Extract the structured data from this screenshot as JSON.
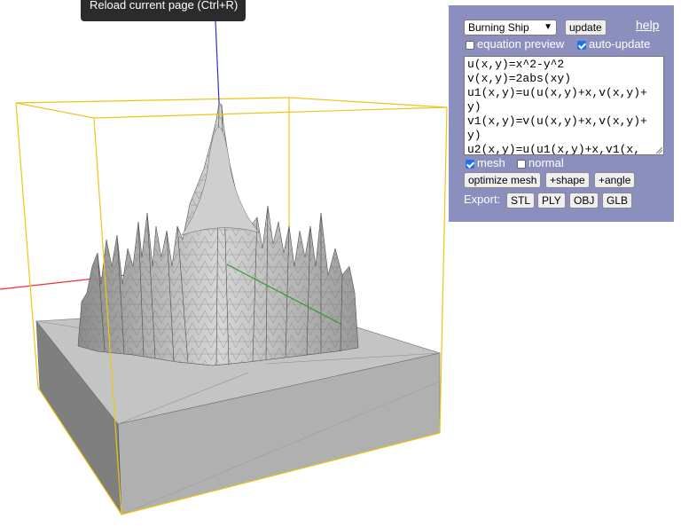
{
  "tooltip": {
    "text": "Reload current page (Ctrl+R)"
  },
  "panel": {
    "fractal_select": {
      "value": "Burning Ship"
    },
    "update_label": "update",
    "help_label": "help",
    "equation_preview": {
      "label": "equation preview",
      "checked": false
    },
    "auto_update": {
      "label": "auto-update",
      "checked": true
    },
    "equation_text": "u(x,y)=x^2-y^2\nv(x,y)=2abs(xy)\nu1(x,y)=u(u(x,y)+x,v(x,y)+y)\nv1(x,y)=v(u(x,y)+x,v(x,y)+y)\nu2(x,y)=u(u1(x,y)+x,v1(x,",
    "mesh": {
      "label": "mesh",
      "checked": true
    },
    "normal": {
      "label": "normal",
      "checked": false
    },
    "optimize_label": "optimize mesh",
    "shape_label": "+shape",
    "angle_label": "+angle",
    "export": {
      "label": "Export:",
      "formats": [
        "STL",
        "PLY",
        "OBJ",
        "GLB"
      ]
    }
  },
  "scene": {
    "axis_colors": {
      "x": "#e8332f",
      "y": "#2f9e2f",
      "z": "#2f2fd8"
    },
    "bounding_box_color": "#f0c419",
    "mesh_color": "#b4b4b4"
  }
}
